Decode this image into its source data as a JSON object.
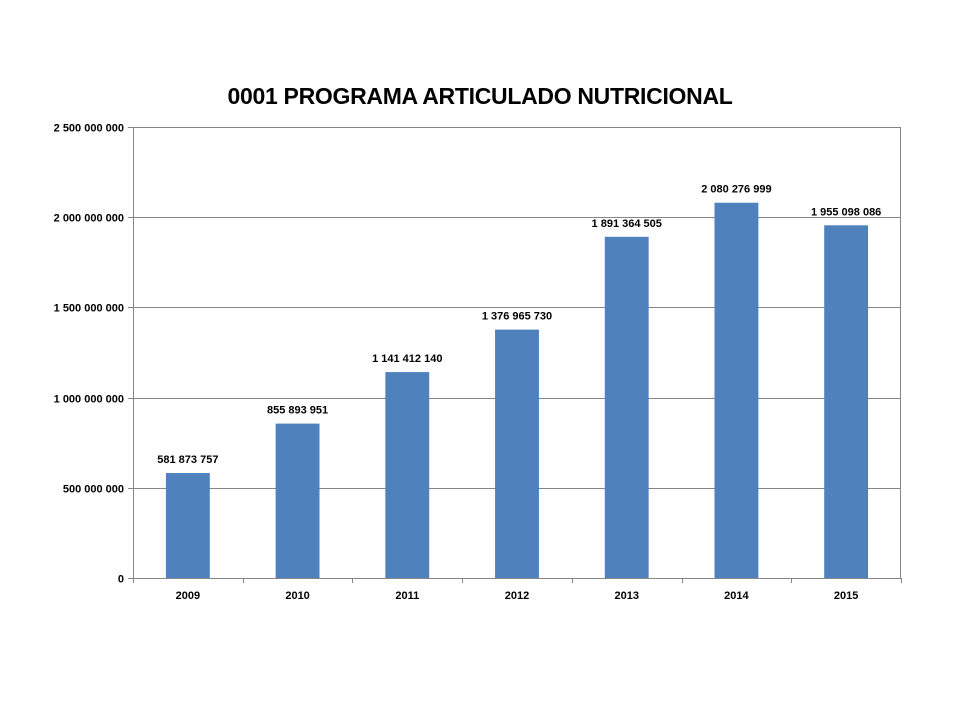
{
  "chart_data": {
    "type": "bar",
    "title": "0001 PROGRAMA ARTICULADO NUTRICIONAL",
    "categories": [
      "2009",
      "2010",
      "2011",
      "2012",
      "2013",
      "2014",
      "2015"
    ],
    "values": [
      581873757,
      855893951,
      1141412140,
      1376965730,
      1891364505,
      2080276999,
      1955098086
    ],
    "value_labels": [
      "581 873 757",
      "855 893 951",
      "1 141 412 140",
      "1 376 965 730",
      "1 891 364 505",
      "2 080 276 999",
      "1 955 098 086"
    ],
    "y_ticks": [
      0,
      500000000,
      1000000000,
      1500000000,
      2000000000,
      2500000000
    ],
    "y_tick_labels": [
      "0",
      "500 000 000",
      "1 000 000 000",
      "1 500 000 000",
      "2 000 000 000",
      "2 500 000 000"
    ],
    "ylim": [
      0,
      2500000000
    ],
    "xlabel": "",
    "ylabel": "",
    "grid": true,
    "bar_color": "#4f81bd"
  }
}
